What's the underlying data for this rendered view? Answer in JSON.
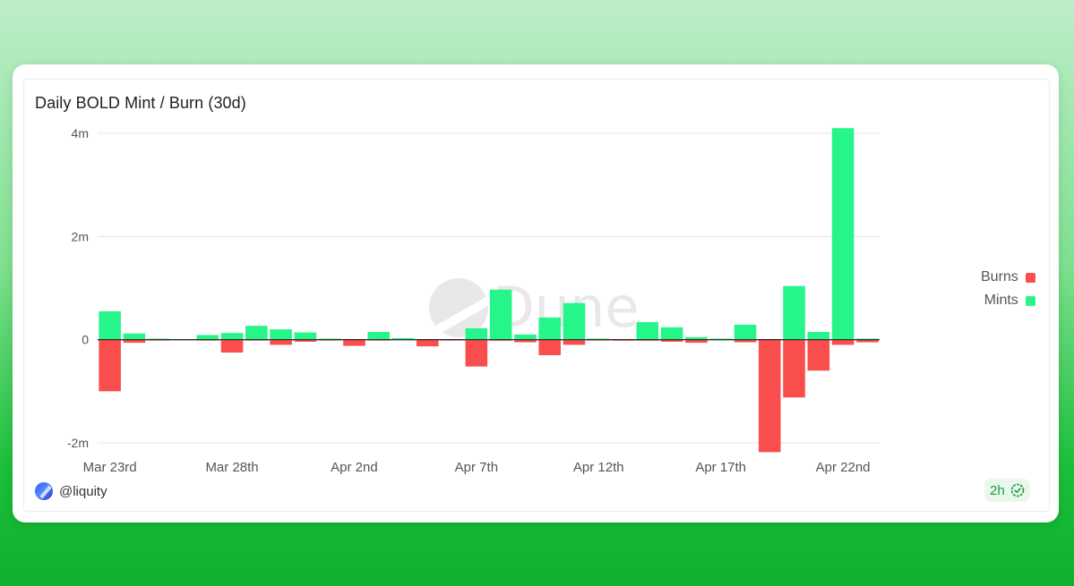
{
  "card": {
    "author": "@liquity",
    "refresh_badge": "2h",
    "watermark": "Dune"
  },
  "colors": {
    "burns": "#fa4d4d",
    "mints": "#26f58a"
  },
  "chart_data": {
    "type": "bar",
    "title": "Daily BOLD Mint / Burn (30d)",
    "xlabel": "",
    "ylabel": "",
    "ylim": [
      -2000000,
      4000000
    ],
    "yticks": [
      {
        "value": 4000000,
        "label": "4m"
      },
      {
        "value": 2000000,
        "label": "2m"
      },
      {
        "value": 0,
        "label": "0"
      },
      {
        "value": -2000000,
        "label": "-2m"
      }
    ],
    "categories": [
      "Mar 23rd",
      "Mar 24th",
      "Mar 25th",
      "Mar 26th",
      "Mar 27th",
      "Mar 28th",
      "Mar 29th",
      "Mar 30th",
      "Mar 31st",
      "Apr 1st",
      "Apr 2nd",
      "Apr 3rd",
      "Apr 4th",
      "Apr 5th",
      "Apr 6th",
      "Apr 7th",
      "Apr 8th",
      "Apr 9th",
      "Apr 10th",
      "Apr 11th",
      "Apr 12th",
      "Apr 13th",
      "Apr 14th",
      "Apr 15th",
      "Apr 16th",
      "Apr 17th",
      "Apr 18th",
      "Apr 19th",
      "Apr 20th",
      "Apr 21st",
      "Apr 22nd",
      "Apr 23rd"
    ],
    "xtick_labels": [
      {
        "index": 0,
        "label": "Mar 23rd"
      },
      {
        "index": 5,
        "label": "Mar 28th"
      },
      {
        "index": 10,
        "label": "Apr 2nd"
      },
      {
        "index": 15,
        "label": "Apr 7th"
      },
      {
        "index": 20,
        "label": "Apr 12th"
      },
      {
        "index": 25,
        "label": "Apr 17th"
      },
      {
        "index": 30,
        "label": "Apr 22nd"
      }
    ],
    "legend_position": "right",
    "grid": true,
    "series": [
      {
        "name": "Burns",
        "values": [
          -1000000,
          -60000,
          -10000,
          0,
          -10000,
          -250000,
          -10000,
          -100000,
          -40000,
          -10000,
          -120000,
          -10000,
          0,
          -130000,
          -10000,
          -520000,
          -20000,
          -50000,
          -300000,
          -100000,
          -10000,
          -20000,
          -20000,
          -40000,
          -60000,
          0,
          -50000,
          -2180000,
          -1120000,
          -600000,
          -100000,
          -50000
        ]
      },
      {
        "name": "Mints",
        "values": [
          550000,
          120000,
          20000,
          0,
          90000,
          130000,
          270000,
          200000,
          140000,
          20000,
          0,
          150000,
          30000,
          0,
          0,
          220000,
          970000,
          100000,
          430000,
          710000,
          20000,
          0,
          340000,
          240000,
          50000,
          20000,
          290000,
          0,
          1040000,
          150000,
          4100000,
          20000
        ]
      }
    ]
  }
}
